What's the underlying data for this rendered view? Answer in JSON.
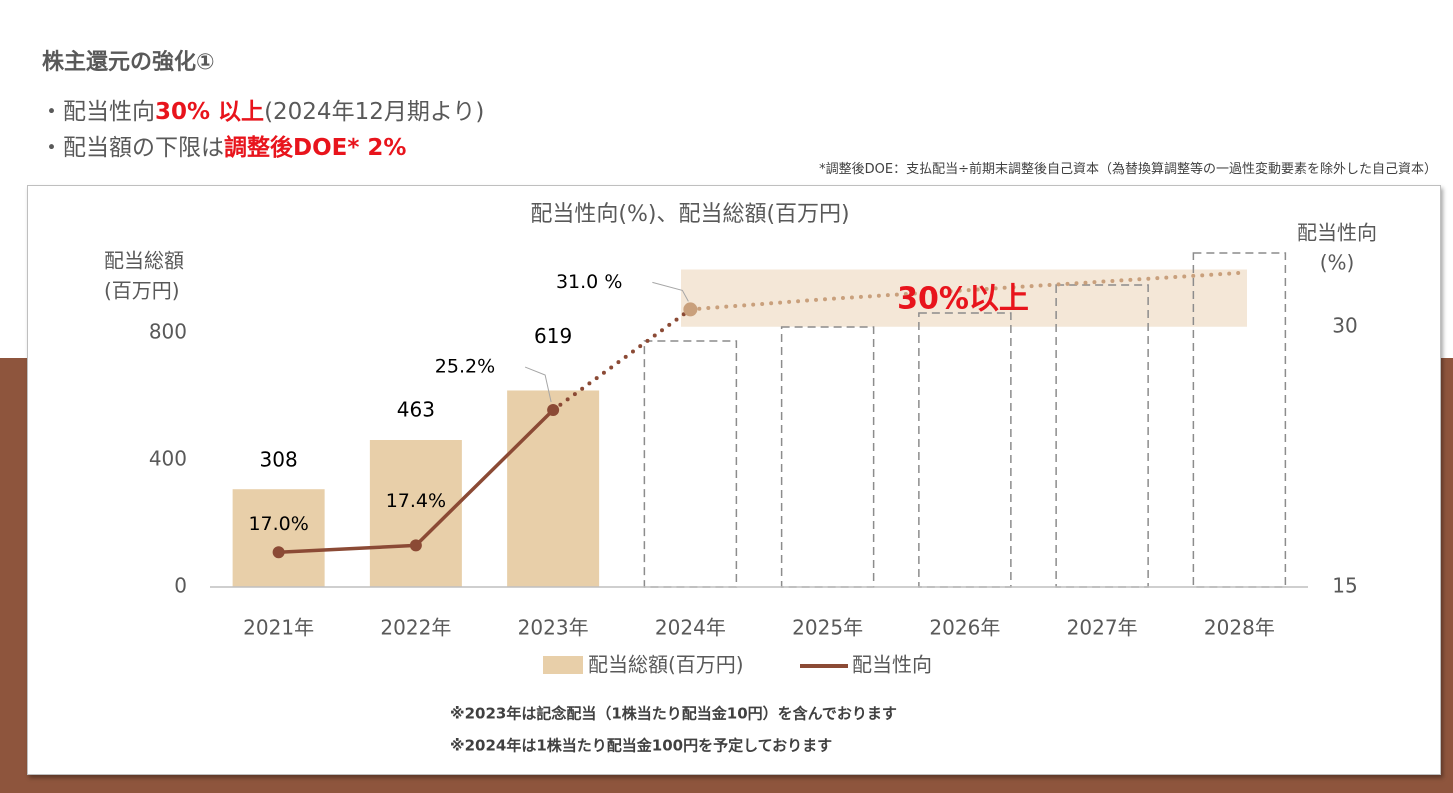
{
  "header": {
    "title": "株主還元の強化①",
    "bullets": [
      [
        {
          "text": "・配当性向"
        },
        {
          "text": "30% 以上",
          "emphasis": true
        },
        {
          "text": "(2024年12月期より)"
        }
      ],
      [
        {
          "text": "・配当額の下限は"
        },
        {
          "text": "調整後DOE* 2%",
          "emphasis": true
        }
      ]
    ],
    "footnote": "*調整後DOE：支払配当÷前期末調整後自己資本（為替換算調整等の一過性変動要素を除外した自己資本）"
  },
  "chart_data": {
    "type": "bar_line",
    "title": "配当性向(%)、配当総額(百万円)",
    "y_label": [
      "配当総額",
      "(百万円)"
    ],
    "y2_label": [
      "配当性向",
      "(%)"
    ],
    "categories": [
      "2021年",
      "2022年",
      "2023年",
      "2024年",
      "2025年",
      "2026年",
      "2027年",
      "2028年"
    ],
    "series": [
      {
        "name": "配当総額(百万円)",
        "color": "#e8cfa9",
        "values": [
          308,
          463,
          619,
          null,
          null,
          null,
          null,
          null
        ]
      },
      {
        "name": "配当性向",
        "color": "#8b4a35",
        "axis": "y2",
        "values": [
          17.0,
          17.4,
          25.2,
          31.0,
          null,
          null,
          null,
          null
        ],
        "value_labels": [
          "17.0%",
          "17.4%",
          "25.2%",
          "31.0 %",
          null,
          null,
          null,
          null
        ]
      }
    ],
    "dashed_values": [
      null,
      null,
      null,
      775,
      819,
      863,
      951,
      1052
    ],
    "dashed_color": "#8c8c8c",
    "trend_values": [
      null,
      null,
      null,
      31.0,
      31.6,
      32.1,
      32.6,
      33.1
    ],
    "trend_color": "#c9a07c",
    "band": {
      "label": "30%以上",
      "y2range": [
        30,
        33.3
      ],
      "color": "#f4e7d7",
      "label_color": "#e8141c"
    },
    "ylim": [
      0,
      1000
    ],
    "yticks": [
      0,
      400,
      800
    ],
    "y2lim": [
      15,
      33.3
    ],
    "y2ticks": [
      15,
      30
    ],
    "notes": [
      "※2023年は記念配当（1株当たり配当金10円）を含んでおります",
      "※2024年は1株当たり配当金100円を予定しております"
    ]
  }
}
